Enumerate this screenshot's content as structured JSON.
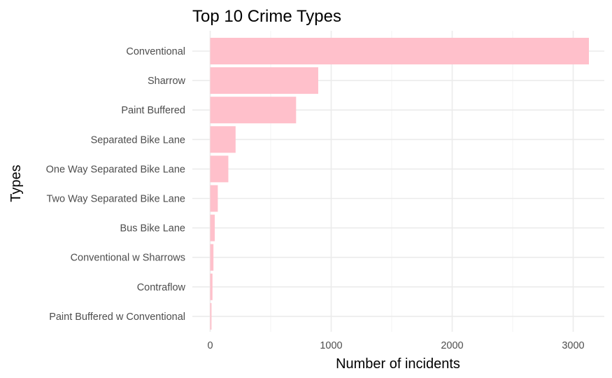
{
  "chart_data": {
    "type": "bar",
    "orientation": "horizontal",
    "title": "Top 10 Crime Types",
    "xlabel": "Number of incidents",
    "ylabel": "Types",
    "categories": [
      "Conventional",
      "Sharrow",
      "Paint Buffered",
      "Separated Bike Lane",
      "One Way Separated Bike Lane",
      "Two Way Separated Bike Lane",
      "Bus Bike Lane",
      "Conventional w Sharrows",
      "Contraflow",
      "Paint Buffered w Conventional"
    ],
    "values": [
      3130,
      893,
      710,
      210,
      150,
      63,
      38,
      27,
      19,
      11
    ],
    "xlim": [
      0,
      3230
    ],
    "xticks": [
      0,
      1000,
      2000,
      3000
    ],
    "xtick_labels": [
      "0",
      "1000",
      "2000",
      "3000"
    ],
    "bar_color": "#ffc0cb",
    "grid": true,
    "legend": "none"
  }
}
